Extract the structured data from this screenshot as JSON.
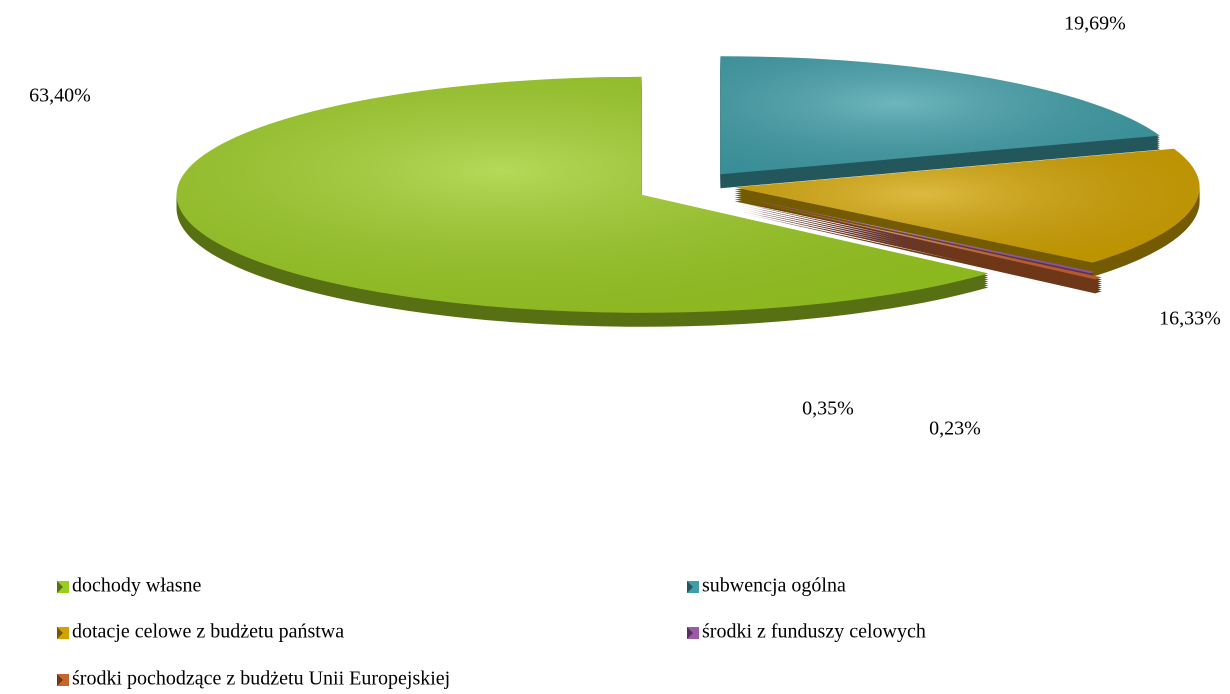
{
  "chart_data": {
    "type": "pie",
    "categories": [
      "dochody własne",
      "subwencja ogólna",
      "dotacje celowe z budżetu państwa",
      "środki z funduszy celowych",
      "środki pochodzące z budżetu Unii Europejskiej"
    ],
    "values": [
      63.4,
      19.69,
      16.33,
      0.23,
      0.35
    ],
    "value_labels": [
      "63,40%",
      "19,69%",
      "16,33%",
      "0,23%",
      "0,35%"
    ],
    "colors": [
      "#9ccc22",
      "#3f9ea8",
      "#d2a300",
      "#9a5ba6",
      "#c8642c"
    ],
    "legend": "bottom"
  }
}
